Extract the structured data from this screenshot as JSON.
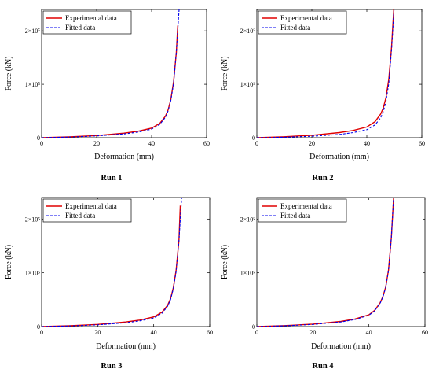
{
  "chart_data": [
    {
      "type": "line",
      "caption": "Run 1",
      "xlabel": "Deformation (mm)",
      "ylabel": "Force (kN)",
      "xlim": [
        0,
        60
      ],
      "ylim": [
        0,
        240000
      ],
      "xticks": [
        "0",
        "20",
        "40",
        "60"
      ],
      "yticks": [
        "0",
        "1×10⁵",
        "2×10⁵"
      ],
      "legend": "top-left",
      "series": [
        {
          "name": "Experimental data",
          "color": "#e00000",
          "style": "solid",
          "x": [
            0,
            10,
            20,
            30,
            35,
            40,
            43,
            45,
            46,
            47,
            48,
            49,
            49.5
          ],
          "y": [
            0,
            1500,
            4000,
            8500,
            12000,
            18000,
            27000,
            40000,
            52000,
            72000,
            105000,
            160000,
            210000
          ]
        },
        {
          "name": "Fitted data",
          "color": "#0000ee",
          "style": "dashed",
          "x": [
            0,
            10,
            20,
            30,
            35,
            40,
            43,
            45,
            46,
            47,
            48,
            49,
            49.8,
            50
          ],
          "y": [
            0,
            1200,
            3200,
            7000,
            10500,
            16000,
            25000,
            38000,
            50000,
            70000,
            102000,
            160000,
            225000,
            240000
          ]
        }
      ]
    },
    {
      "type": "line",
      "caption": "Run 2",
      "xlabel": "Deformation (mm)",
      "ylabel": "Force (kN)",
      "xlim": [
        0,
        60
      ],
      "ylim": [
        0,
        240000
      ],
      "xticks": [
        "0",
        "20",
        "40",
        "60"
      ],
      "yticks": [
        "0",
        "1×10⁵",
        "2×10⁵"
      ],
      "legend": "top-left",
      "series": [
        {
          "name": "Experimental data",
          "color": "#e00000",
          "style": "solid",
          "x": [
            0,
            10,
            20,
            30,
            35,
            40,
            43,
            45,
            46,
            47,
            48,
            49,
            49.8
          ],
          "y": [
            0,
            1800,
            4500,
            9500,
            13500,
            20000,
            30000,
            44000,
            56000,
            76000,
            110000,
            170000,
            240000
          ]
        },
        {
          "name": "Fitted data",
          "color": "#0000ee",
          "style": "dashed",
          "x": [
            0,
            10,
            20,
            30,
            35,
            40,
            43,
            45,
            46,
            47,
            48,
            49,
            49.9
          ],
          "y": [
            0,
            900,
            2600,
            6000,
            9500,
            15000,
            24000,
            37000,
            49000,
            69000,
            102000,
            165000,
            240000
          ]
        }
      ]
    },
    {
      "type": "line",
      "caption": "Run 3",
      "xlabel": "Deformation (mm)",
      "ylabel": "Force (kN)",
      "xlim": [
        0,
        60
      ],
      "ylim": [
        0,
        240000
      ],
      "xticks": [
        "0",
        "20",
        "40",
        "60"
      ],
      "yticks": [
        "0",
        "1×10⁵",
        "2×10⁵"
      ],
      "legend": "top-left",
      "series": [
        {
          "name": "Experimental data",
          "color": "#e00000",
          "style": "solid",
          "x": [
            0,
            10,
            20,
            30,
            35,
            40,
            43,
            45,
            46,
            47,
            48,
            49,
            49.5
          ],
          "y": [
            0,
            1500,
            4000,
            8500,
            12000,
            18000,
            27000,
            40000,
            52000,
            72000,
            105000,
            160000,
            225000
          ]
        },
        {
          "name": "Fitted data",
          "color": "#0000ee",
          "style": "dashed",
          "x": [
            0,
            10,
            20,
            30,
            35,
            40,
            43,
            45,
            46,
            47,
            48,
            49,
            49.8,
            50
          ],
          "y": [
            0,
            1200,
            3200,
            7000,
            10500,
            16000,
            25000,
            38000,
            50000,
            70000,
            102000,
            160000,
            225000,
            240000
          ]
        }
      ]
    },
    {
      "type": "line",
      "caption": "Run 4",
      "xlabel": "Deformation (mm)",
      "ylabel": "Force (kN)",
      "xlim": [
        0,
        60
      ],
      "ylim": [
        0,
        240000
      ],
      "xticks": [
        "0",
        "20",
        "40",
        "60"
      ],
      "yticks": [
        "0",
        "1×10⁵",
        "2×10⁵"
      ],
      "legend": "top-left",
      "series": [
        {
          "name": "Experimental data",
          "color": "#e00000",
          "style": "solid",
          "x": [
            0,
            10,
            20,
            30,
            35,
            40,
            42,
            44,
            45,
            46,
            47,
            48,
            48.8
          ],
          "y": [
            0,
            1800,
            4500,
            9500,
            14000,
            22000,
            30000,
            44000,
            56000,
            74000,
            105000,
            165000,
            240000
          ]
        },
        {
          "name": "Fitted data",
          "color": "#0000ee",
          "style": "dashed",
          "x": [
            0,
            10,
            20,
            30,
            35,
            40,
            42,
            44,
            45,
            46,
            47,
            48,
            48.8
          ],
          "y": [
            0,
            1500,
            4000,
            8500,
            13000,
            21000,
            29000,
            43000,
            55000,
            73000,
            104000,
            165000,
            240000
          ]
        }
      ]
    }
  ]
}
